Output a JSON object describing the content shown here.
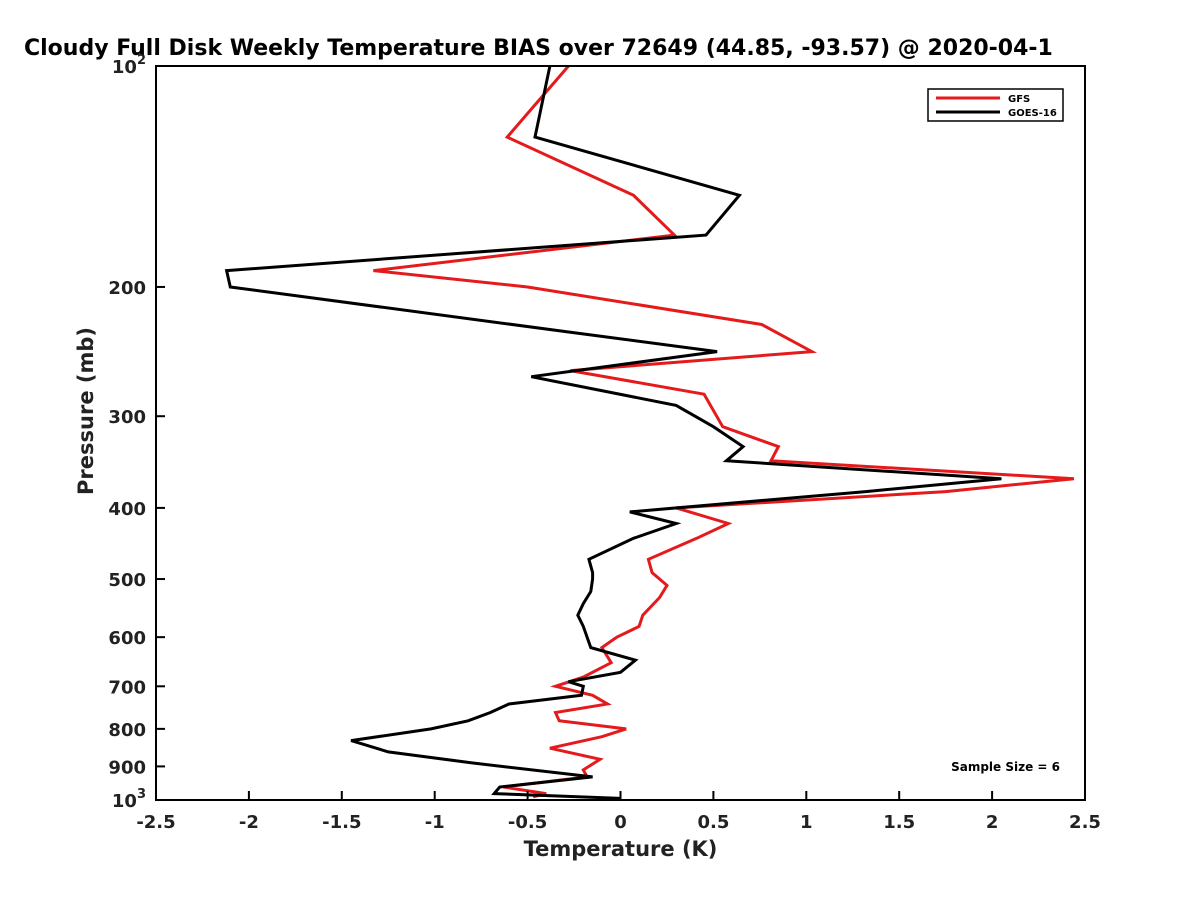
{
  "chart_data": {
    "type": "line",
    "title": "Cloudy Full Disk Weekly Temperature BIAS over 72649 (44.85, -93.57) @ 2020-04-1",
    "xlabel": "Temperature (K)",
    "ylabel": "Pressure (mb)",
    "xlim": [
      -2.5,
      2.5
    ],
    "ylim": [
      100,
      1000
    ],
    "y_scale": "log",
    "y_reversed": true,
    "grid": false,
    "legend_position": "top-right",
    "x_ticks": [
      "-2.5",
      "-2",
      "-1.5",
      "-1",
      "-0.5",
      "0",
      "0.5",
      "1",
      "1.5",
      "2",
      "2.5"
    ],
    "x_tick_values": [
      -2.5,
      -2,
      -1.5,
      -1,
      -0.5,
      0,
      0.5,
      1,
      1.5,
      2,
      2.5
    ],
    "y_ticks": [
      {
        "base": "10",
        "exp": "2",
        "value": 100
      },
      {
        "label": "200",
        "value": 200
      },
      {
        "label": "300",
        "value": 300
      },
      {
        "label": "400",
        "value": 400
      },
      {
        "label": "500",
        "value": 500
      },
      {
        "label": "600",
        "value": 600
      },
      {
        "label": "700",
        "value": 700
      },
      {
        "label": "800",
        "value": 800
      },
      {
        "label": "900",
        "value": 900
      },
      {
        "base": "10",
        "exp": "3",
        "value": 1000
      }
    ],
    "annotation": "Sample Size = 6",
    "series": [
      {
        "name": "GFS",
        "color": "#e41a1c",
        "points": [
          [
            -0.28,
            100
          ],
          [
            -0.61,
            125
          ],
          [
            0.07,
            150
          ],
          [
            0.29,
            170
          ],
          [
            -1.33,
            190
          ],
          [
            -0.5,
            200
          ],
          [
            0.76,
            225
          ],
          [
            1.03,
            245
          ],
          [
            -0.27,
            260
          ],
          [
            0.45,
            280
          ],
          [
            0.55,
            310
          ],
          [
            0.85,
            330
          ],
          [
            0.81,
            345
          ],
          [
            2.44,
            365
          ],
          [
            1.75,
            380
          ],
          [
            0.3,
            400
          ],
          [
            0.58,
            420
          ],
          [
            0.41,
            440
          ],
          [
            0.15,
            470
          ],
          [
            0.17,
            490
          ],
          [
            0.25,
            510
          ],
          [
            0.21,
            530
          ],
          [
            0.12,
            560
          ],
          [
            0.1,
            580
          ],
          [
            -0.02,
            600
          ],
          [
            -0.1,
            620
          ],
          [
            -0.05,
            650
          ],
          [
            -0.2,
            680
          ],
          [
            -0.35,
            700
          ],
          [
            -0.15,
            720
          ],
          [
            -0.07,
            740
          ],
          [
            -0.35,
            760
          ],
          [
            -0.33,
            780
          ],
          [
            0.03,
            800
          ],
          [
            -0.1,
            820
          ],
          [
            -0.38,
            850
          ],
          [
            -0.11,
            880
          ],
          [
            -0.2,
            910
          ],
          [
            -0.18,
            930
          ],
          [
            -0.63,
            960
          ],
          [
            -0.4,
            980
          ],
          [
            -0.47,
            990
          ]
        ]
      },
      {
        "name": "GOES-16",
        "color": "#000000",
        "points": [
          [
            -0.38,
            100
          ],
          [
            -0.46,
            125
          ],
          [
            0.64,
            150
          ],
          [
            0.46,
            170
          ],
          [
            -2.12,
            190
          ],
          [
            -2.1,
            200
          ],
          [
            -0.3,
            230
          ],
          [
            0.52,
            245
          ],
          [
            -0.48,
            265
          ],
          [
            0.3,
            290
          ],
          [
            0.5,
            310
          ],
          [
            0.66,
            330
          ],
          [
            0.57,
            345
          ],
          [
            2.05,
            365
          ],
          [
            1.32,
            380
          ],
          [
            0.05,
            405
          ],
          [
            0.3,
            420
          ],
          [
            0.07,
            440
          ],
          [
            -0.17,
            470
          ],
          [
            -0.15,
            490
          ],
          [
            -0.15,
            500
          ],
          [
            -0.16,
            520
          ],
          [
            -0.2,
            540
          ],
          [
            -0.23,
            560
          ],
          [
            -0.2,
            580
          ],
          [
            -0.18,
            600
          ],
          [
            -0.16,
            620
          ],
          [
            0.08,
            645
          ],
          [
            0.0,
            670
          ],
          [
            -0.28,
            690
          ],
          [
            -0.2,
            700
          ],
          [
            -0.21,
            720
          ],
          [
            -0.6,
            740
          ],
          [
            -0.7,
            760
          ],
          [
            -0.82,
            780
          ],
          [
            -1.02,
            800
          ],
          [
            -1.45,
            830
          ],
          [
            -1.25,
            860
          ],
          [
            -0.8,
            890
          ],
          [
            -0.15,
            930
          ],
          [
            -0.65,
            960
          ],
          [
            -0.68,
            980
          ],
          [
            0.0,
            995
          ]
        ]
      }
    ]
  }
}
